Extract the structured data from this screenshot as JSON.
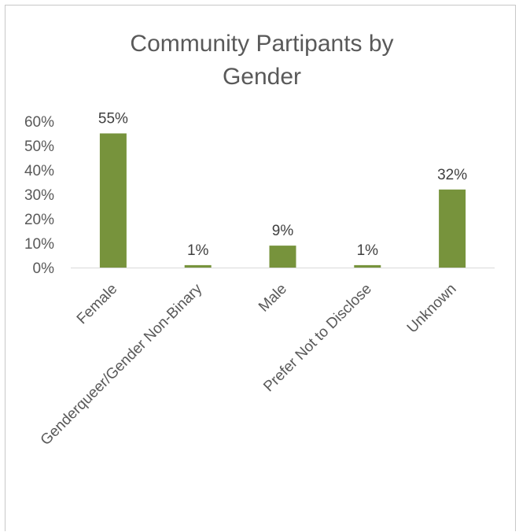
{
  "chart_data": {
    "type": "bar",
    "title": "Community Partipants by Gender",
    "title_lines": [
      "Community Partipants by",
      "Gender"
    ],
    "categories": [
      "Female",
      "Genderqueer/Gender Non-Binary",
      "Male",
      "Prefer Not to Disclose",
      "Unknown"
    ],
    "values": [
      55,
      1,
      9,
      1,
      32
    ],
    "data_labels": [
      "55%",
      "1%",
      "9%",
      "1%",
      "32%"
    ],
    "yticks": [
      0,
      10,
      20,
      30,
      40,
      50,
      60
    ],
    "ytick_labels": [
      "0%",
      "10%",
      "20%",
      "30%",
      "40%",
      "50%",
      "60%"
    ],
    "ylim": [
      0,
      60
    ],
    "xlabel": "",
    "ylabel": "",
    "grid": false,
    "legend": "none",
    "bar_color": "#77933c",
    "text_color": "#595959",
    "axis_color": "#d9d9d9"
  }
}
